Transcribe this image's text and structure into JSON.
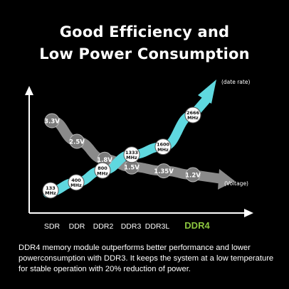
{
  "title_line1": "Good Efficiency and",
  "title_line2": "Low Power Consumption",
  "caption": "DDR4 memory module outperforms better performance and lower powerconsumption with DDR3. It keeps the system at a low temperature for stable operation with 20% reduction of power.",
  "colors": {
    "background": "#000000",
    "data_rate_arrow": "#5fd8df",
    "voltage_arrow": "#8a8a8a",
    "marker_fill": "#7b7b7b",
    "marker_light": "#ffffff",
    "highlight_label": "#8cc63f"
  },
  "chart_data": {
    "type": "line",
    "categories": [
      "SDR",
      "DDR",
      "DDR2",
      "DDR3",
      "DDR3L",
      "DDR4"
    ],
    "highlight_category": "DDR4",
    "series": [
      {
        "name": "(date rate)",
        "values": [
          133,
          400,
          800,
          1333,
          1600,
          2666
        ],
        "labels": [
          "133\nMHz",
          "400\nMHz",
          "800\nMHz",
          "1333\nMHz",
          "1600\nMHz",
          "2666\nMHz"
        ]
      },
      {
        "name": "(Voltage)",
        "values": [
          3.3,
          2.5,
          1.8,
          1.5,
          1.35,
          1.2
        ],
        "labels": [
          "3.3V",
          "2.5V",
          "1.8V",
          "1.5V",
          "1.35V",
          "1.2V"
        ]
      }
    ]
  }
}
